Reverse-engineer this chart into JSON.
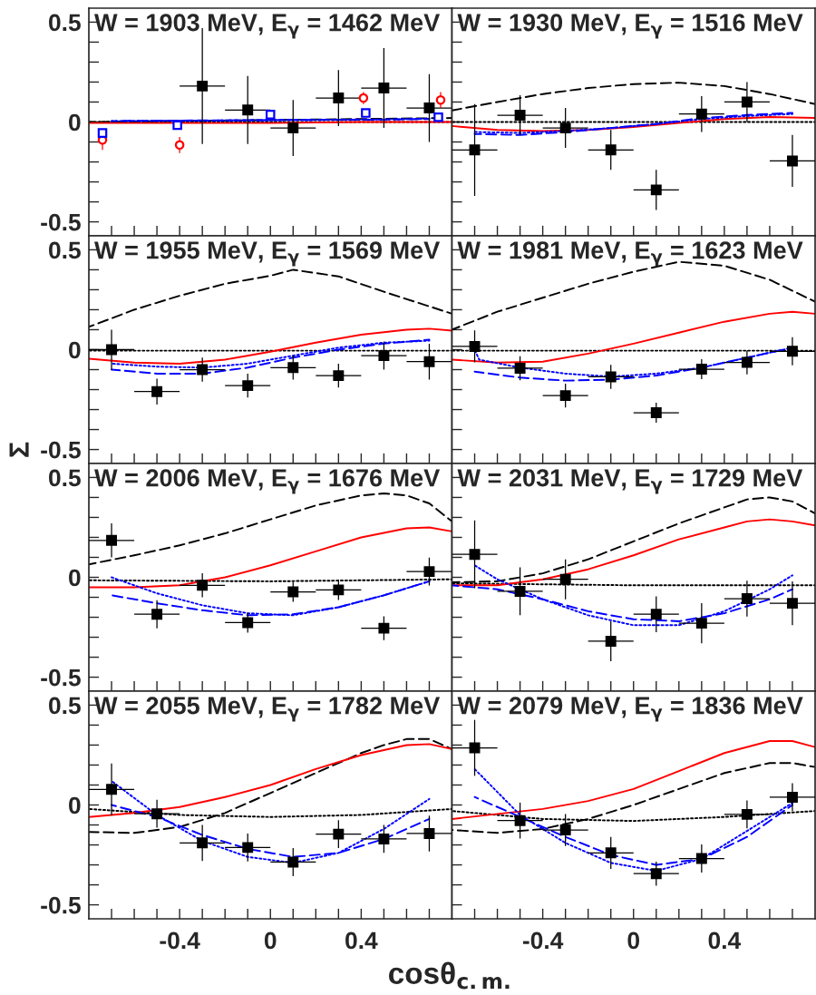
{
  "chart_data": [
    {
      "type": "scatter",
      "title": "W = 1903 MeV, E$_{γ}$ = 1462 MeV",
      "xlim": [
        -0.8,
        0.8
      ],
      "ylim": [
        -0.57,
        0.57
      ],
      "tick_labels": "y",
      "xticks": [
        {
          "value": -0.7,
          "label": null
        },
        {
          "value": -0.6,
          "label": null
        },
        {
          "value": -0.5,
          "label": null
        },
        -0.4,
        {
          "value": -0.3,
          "label": null
        },
        {
          "value": -0.2,
          "label": null
        },
        {
          "value": -0.1,
          "label": null
        },
        0,
        {
          "value": 0.1,
          "label": null
        },
        {
          "value": 0.2,
          "label": null
        },
        {
          "value": 0.3,
          "label": null
        },
        0.4,
        {
          "value": 0.5,
          "label": null
        },
        {
          "value": 0.6,
          "label": null
        },
        {
          "value": 0.7,
          "label": null
        }
      ],
      "yticks": [
        -0.5,
        {
          "value": -0.4,
          "label": null
        },
        {
          "value": -0.3,
          "label": null
        },
        {
          "value": -0.2,
          "label": null
        },
        {
          "value": -0.1,
          "label": null
        },
        0,
        {
          "value": 0.1,
          "label": null
        },
        {
          "value": 0.2,
          "label": null
        },
        {
          "value": 0.3,
          "label": null
        },
        {
          "value": 0.4,
          "label": null
        },
        0.5
      ],
      "series": [
        {
          "type": "line",
          "color": "#000000",
          "line_style": "dotted",
          "x": [
            -0.8,
            0,
            0.8
          ],
          "values": [
            0,
            0,
            0
          ]
        },
        {
          "type": "line",
          "color": "#000000",
          "line_style": "dashed",
          "x": [
            -0.8,
            -0.4,
            0,
            0.4,
            0.8
          ],
          "values": [
            0.0,
            0.005,
            0.01,
            0.015,
            0.02
          ]
        },
        {
          "type": "line",
          "color": "#ff0000",
          "line_style": "solid",
          "x": [
            -0.8,
            -0.4,
            0,
            0.4,
            0.8
          ],
          "values": [
            -0.005,
            -0.005,
            -0.005,
            0.0,
            0.0
          ]
        },
        {
          "type": "line",
          "color": "#0000ff",
          "line_style": "dashed",
          "x": [
            -0.7,
            -0.3,
            0.1,
            0.5,
            0.7
          ],
          "values": [
            0.005,
            0.008,
            0.01,
            0.012,
            0.015
          ]
        },
        {
          "type": "line",
          "color": "#0000ff",
          "line_style": "dotted",
          "x": [
            -0.7,
            -0.3,
            0.1,
            0.5,
            0.7
          ],
          "values": [
            0.005,
            0.007,
            0.01,
            0.013,
            0.016
          ]
        },
        {
          "type": "scatter",
          "marker": "square",
          "color": "#000000",
          "x": [
            -0.3,
            -0.1,
            0.1,
            0.3,
            0.5,
            0.7
          ],
          "values": [
            0.18,
            0.06,
            -0.03,
            0.12,
            0.17,
            0.07
          ],
          "errors": [
            0.29,
            0.17,
            0.14,
            0.14,
            0.2,
            0.17
          ],
          "xerrors": [
            0.1,
            0.1,
            0.1,
            0.1,
            0.1,
            0.1
          ]
        },
        {
          "type": "scatter",
          "marker": "circle",
          "color": "#ff0000",
          "x": [
            -0.74,
            -0.4,
            0.41,
            0.75
          ],
          "values": [
            -0.09,
            -0.115,
            0.12,
            0.11
          ],
          "errors": [
            0.05,
            0.04,
            0.03,
            0.04
          ]
        },
        {
          "type": "scatter",
          "marker": "square",
          "color": "#0000ff",
          "x": [
            -0.74,
            -0.41,
            0.0,
            0.42,
            0.74
          ],
          "values": [
            -0.055,
            -0.016,
            0.037,
            0.045,
            0.024
          ],
          "errors": [
            0.02,
            0.02,
            0.02,
            0.02,
            0.02
          ]
        }
      ]
    },
    {
      "type": "scatter",
      "title": "W = 1930 MeV, E$_{γ}$ = 1516 MeV",
      "xlim": [
        -0.8,
        0.8
      ],
      "ylim": [
        -0.57,
        0.57
      ],
      "tick_labels": false,
      "xticks": [
        {
          "value": -0.7,
          "label": null
        },
        {
          "value": -0.6,
          "label": null
        },
        {
          "value": -0.5,
          "label": null
        },
        -0.4,
        {
          "value": -0.3,
          "label": null
        },
        {
          "value": -0.2,
          "label": null
        },
        {
          "value": -0.1,
          "label": null
        },
        0,
        {
          "value": 0.1,
          "label": null
        },
        {
          "value": 0.2,
          "label": null
        },
        {
          "value": 0.3,
          "label": null
        },
        0.4,
        {
          "value": 0.5,
          "label": null
        },
        {
          "value": 0.6,
          "label": null
        },
        {
          "value": 0.7,
          "label": null
        }
      ],
      "yticks": [
        -0.5,
        {
          "value": -0.4,
          "label": null
        },
        {
          "value": -0.3,
          "label": null
        },
        {
          "value": -0.2,
          "label": null
        },
        {
          "value": -0.1,
          "label": null
        },
        0,
        {
          "value": 0.1,
          "label": null
        },
        {
          "value": 0.2,
          "label": null
        },
        {
          "value": 0.3,
          "label": null
        },
        {
          "value": 0.4,
          "label": null
        },
        0.5
      ],
      "series": [
        {
          "type": "line",
          "color": "#000000",
          "line_style": "dotted",
          "x": [
            -0.8,
            0,
            0.8
          ],
          "values": [
            0,
            0,
            0
          ]
        },
        {
          "type": "line",
          "color": "#000000",
          "line_style": "dashed",
          "x": [
            -0.8,
            -0.6,
            -0.4,
            -0.2,
            0,
            0.2,
            0.4,
            0.6,
            0.8
          ],
          "values": [
            0.058,
            0.1,
            0.14,
            0.17,
            0.19,
            0.197,
            0.18,
            0.14,
            0.09
          ]
        },
        {
          "type": "line",
          "color": "#ff0000",
          "line_style": "solid",
          "x": [
            -0.8,
            -0.6,
            -0.4,
            -0.2,
            0,
            0.2,
            0.4,
            0.6,
            0.8
          ],
          "values": [
            -0.02,
            -0.04,
            -0.045,
            -0.04,
            -0.025,
            -0.005,
            0.015,
            0.025,
            0.02
          ]
        },
        {
          "type": "line",
          "color": "#0000ff",
          "line_style": "dashed",
          "x": [
            -0.7,
            -0.5,
            -0.3,
            -0.1,
            0.1,
            0.3,
            0.5,
            0.7
          ],
          "values": [
            -0.06,
            -0.065,
            -0.05,
            -0.03,
            -0.01,
            0.02,
            0.035,
            0.045
          ]
        },
        {
          "type": "line",
          "color": "#0000ff",
          "line_style": "dotted",
          "x": [
            -0.7,
            -0.5,
            -0.3,
            -0.1,
            0.1,
            0.3,
            0.5,
            0.7
          ],
          "values": [
            -0.05,
            -0.055,
            -0.045,
            -0.03,
            -0.01,
            0.015,
            0.03,
            0.04
          ]
        },
        {
          "type": "scatter",
          "marker": "square",
          "color": "#000000",
          "x": [
            -0.7,
            -0.5,
            -0.3,
            -0.1,
            0.1,
            0.3,
            0.5,
            0.7
          ],
          "values": [
            -0.14,
            0.034,
            -0.03,
            -0.14,
            -0.34,
            0.04,
            0.1,
            -0.195
          ],
          "errors": [
            0.23,
            0.1,
            0.1,
            0.1,
            0.1,
            0.09,
            0.1,
            0.13
          ],
          "xerrors": [
            0.1,
            0.1,
            0.1,
            0.1,
            0.1,
            0.1,
            0.1,
            0.1
          ]
        }
      ]
    },
    {
      "type": "scatter",
      "title": "W = 1955 MeV, E$_{γ}$ = 1569 MeV",
      "ylabel": "Σ",
      "xlim": [
        -0.8,
        0.8
      ],
      "ylim": [
        -0.57,
        0.57
      ],
      "tick_labels": "y",
      "xticks": [
        {
          "value": -0.7,
          "label": null
        },
        {
          "value": -0.6,
          "label": null
        },
        {
          "value": -0.5,
          "label": null
        },
        -0.4,
        {
          "value": -0.3,
          "label": null
        },
        {
          "value": -0.2,
          "label": null
        },
        {
          "value": -0.1,
          "label": null
        },
        0,
        {
          "value": 0.1,
          "label": null
        },
        {
          "value": 0.2,
          "label": null
        },
        {
          "value": 0.3,
          "label": null
        },
        0.4,
        {
          "value": 0.5,
          "label": null
        },
        {
          "value": 0.6,
          "label": null
        },
        {
          "value": 0.7,
          "label": null
        }
      ],
      "yticks": [
        -0.5,
        {
          "value": -0.4,
          "label": null
        },
        {
          "value": -0.3,
          "label": null
        },
        {
          "value": -0.2,
          "label": null
        },
        {
          "value": -0.1,
          "label": null
        },
        0,
        {
          "value": 0.1,
          "label": null
        },
        {
          "value": 0.2,
          "label": null
        },
        {
          "value": 0.3,
          "label": null
        },
        {
          "value": 0.4,
          "label": null
        },
        0.5
      ],
      "series": [
        {
          "type": "line",
          "color": "#000000",
          "line_style": "dotted",
          "x": [
            -0.8,
            0,
            0.8
          ],
          "values": [
            -0.005,
            -0.005,
            -0.005
          ]
        },
        {
          "type": "line",
          "color": "#000000",
          "line_style": "dashed",
          "x": [
            -0.8,
            -0.6,
            -0.4,
            -0.2,
            0,
            0.1,
            0.3,
            0.5,
            0.8
          ],
          "values": [
            0.114,
            0.2,
            0.27,
            0.33,
            0.37,
            0.4,
            0.367,
            0.29,
            0.18
          ]
        },
        {
          "type": "line",
          "color": "#ff0000",
          "line_style": "solid",
          "x": [
            -0.8,
            -0.6,
            -0.4,
            -0.2,
            0,
            0.2,
            0.4,
            0.6,
            0.7,
            0.8
          ],
          "values": [
            -0.045,
            -0.065,
            -0.07,
            -0.05,
            -0.01,
            0.035,
            0.075,
            0.1,
            0.105,
            0.095
          ]
        },
        {
          "type": "line",
          "color": "#0000ff",
          "line_style": "dashed",
          "x": [
            -0.7,
            -0.5,
            -0.3,
            -0.1,
            0.1,
            0.3,
            0.5,
            0.7
          ],
          "values": [
            -0.1,
            -0.12,
            -0.12,
            -0.09,
            -0.04,
            0.0,
            0.03,
            0.05
          ]
        },
        {
          "type": "line",
          "color": "#0000ff",
          "line_style": "dotted",
          "x": [
            -0.7,
            -0.5,
            -0.3,
            -0.1,
            0.1,
            0.3,
            0.5,
            0.7
          ],
          "values": [
            -0.07,
            -0.085,
            -0.09,
            -0.07,
            -0.03,
            0.01,
            0.035,
            0.045
          ]
        },
        {
          "type": "scatter",
          "marker": "square",
          "color": "#000000",
          "x": [
            -0.7,
            -0.5,
            -0.3,
            -0.1,
            0.1,
            0.3,
            0.5,
            0.7
          ],
          "values": [
            0.0,
            -0.21,
            -0.1,
            -0.18,
            -0.09,
            -0.13,
            -0.03,
            -0.06
          ],
          "errors": [
            0.1,
            0.065,
            0.06,
            0.06,
            0.06,
            0.06,
            0.07,
            0.09
          ],
          "xerrors": [
            0.1,
            0.1,
            0.1,
            0.1,
            0.1,
            0.1,
            0.1,
            0.1
          ]
        }
      ]
    },
    {
      "type": "scatter",
      "title": "W = 1981 MeV, E$_{γ}$ = 1623 MeV",
      "xlim": [
        -0.8,
        0.8
      ],
      "ylim": [
        -0.57,
        0.57
      ],
      "tick_labels": false,
      "xticks": [
        {
          "value": -0.7,
          "label": null
        },
        {
          "value": -0.6,
          "label": null
        },
        {
          "value": -0.5,
          "label": null
        },
        -0.4,
        {
          "value": -0.3,
          "label": null
        },
        {
          "value": -0.2,
          "label": null
        },
        {
          "value": -0.1,
          "label": null
        },
        0,
        {
          "value": 0.1,
          "label": null
        },
        {
          "value": 0.2,
          "label": null
        },
        {
          "value": 0.3,
          "label": null
        },
        0.4,
        {
          "value": 0.5,
          "label": null
        },
        {
          "value": 0.6,
          "label": null
        },
        {
          "value": 0.7,
          "label": null
        }
      ],
      "yticks": [
        -0.5,
        {
          "value": -0.4,
          "label": null
        },
        {
          "value": -0.3,
          "label": null
        },
        {
          "value": -0.2,
          "label": null
        },
        {
          "value": -0.1,
          "label": null
        },
        0,
        {
          "value": 0.1,
          "label": null
        },
        {
          "value": 0.2,
          "label": null
        },
        {
          "value": 0.3,
          "label": null
        },
        {
          "value": 0.4,
          "label": null
        },
        0.5
      ],
      "series": [
        {
          "type": "line",
          "color": "#000000",
          "line_style": "dotted",
          "x": [
            -0.8,
            0,
            0.8
          ],
          "values": [
            -0.005,
            -0.005,
            -0.005
          ]
        },
        {
          "type": "line",
          "color": "#000000",
          "line_style": "dashed",
          "x": [
            -0.8,
            -0.6,
            -0.4,
            -0.2,
            0,
            0.2,
            0.4,
            0.6,
            0.8
          ],
          "values": [
            0.1,
            0.19,
            0.26,
            0.33,
            0.39,
            0.44,
            0.42,
            0.35,
            0.24
          ]
        },
        {
          "type": "line",
          "color": "#ff0000",
          "line_style": "solid",
          "x": [
            -0.8,
            -0.6,
            -0.4,
            -0.2,
            0,
            0.2,
            0.4,
            0.6,
            0.7,
            0.8
          ],
          "values": [
            -0.05,
            -0.065,
            -0.06,
            -0.02,
            0.03,
            0.085,
            0.14,
            0.18,
            0.19,
            0.18
          ]
        },
        {
          "type": "line",
          "color": "#0000ff",
          "line_style": "dashed",
          "x": [
            -0.7,
            -0.5,
            -0.3,
            -0.1,
            0.1,
            0.3,
            0.5,
            0.7
          ],
          "values": [
            -0.11,
            -0.14,
            -0.155,
            -0.15,
            -0.13,
            -0.09,
            -0.04,
            0.01
          ]
        },
        {
          "type": "line",
          "color": "#0000ff",
          "line_style": "dotted",
          "x": [
            -0.7,
            -0.68,
            -0.5,
            -0.3,
            -0.1,
            0.1,
            0.3,
            0.5,
            0.7
          ],
          "values": [
            0.0,
            -0.05,
            -0.09,
            -0.12,
            -0.135,
            -0.12,
            -0.09,
            -0.04,
            0.01
          ]
        },
        {
          "type": "scatter",
          "marker": "square",
          "color": "#000000",
          "x": [
            -0.7,
            -0.5,
            -0.3,
            -0.1,
            0.1,
            0.3,
            0.5,
            0.7
          ],
          "values": [
            0.016,
            -0.093,
            -0.23,
            -0.136,
            -0.316,
            -0.098,
            -0.064,
            -0.008
          ],
          "errors": [
            0.08,
            0.06,
            0.06,
            0.06,
            0.05,
            0.05,
            0.06,
            0.07
          ],
          "xerrors": [
            0.1,
            0.1,
            0.1,
            0.1,
            0.1,
            0.1,
            0.1,
            0.1
          ]
        }
      ]
    },
    {
      "type": "scatter",
      "title": "W = 2006 MeV, E$_{γ}$ = 1676 MeV",
      "xlim": [
        -0.8,
        0.8
      ],
      "ylim": [
        -0.57,
        0.57
      ],
      "tick_labels": "y",
      "xticks": [
        {
          "value": -0.7,
          "label": null
        },
        {
          "value": -0.6,
          "label": null
        },
        {
          "value": -0.5,
          "label": null
        },
        -0.4,
        {
          "value": -0.3,
          "label": null
        },
        {
          "value": -0.2,
          "label": null
        },
        {
          "value": -0.1,
          "label": null
        },
        0,
        {
          "value": 0.1,
          "label": null
        },
        {
          "value": 0.2,
          "label": null
        },
        {
          "value": 0.3,
          "label": null
        },
        0.4,
        {
          "value": 0.5,
          "label": null
        },
        {
          "value": 0.6,
          "label": null
        },
        {
          "value": 0.7,
          "label": null
        }
      ],
      "yticks": [
        -0.5,
        {
          "value": -0.4,
          "label": null
        },
        {
          "value": -0.3,
          "label": null
        },
        {
          "value": -0.2,
          "label": null
        },
        {
          "value": -0.1,
          "label": null
        },
        0,
        {
          "value": 0.1,
          "label": null
        },
        {
          "value": 0.2,
          "label": null
        },
        {
          "value": 0.3,
          "label": null
        },
        {
          "value": 0.4,
          "label": null
        },
        0.5
      ],
      "series": [
        {
          "type": "line",
          "color": "#000000",
          "line_style": "dotted",
          "x": [
            -0.8,
            0,
            0.8
          ],
          "values": [
            -0.015,
            -0.02,
            -0.01
          ]
        },
        {
          "type": "line",
          "color": "#000000",
          "line_style": "dashed",
          "x": [
            -0.8,
            -0.6,
            -0.4,
            -0.2,
            0,
            0.2,
            0.4,
            0.5,
            0.6,
            0.7,
            0.8
          ],
          "values": [
            0.065,
            0.11,
            0.16,
            0.22,
            0.29,
            0.36,
            0.41,
            0.42,
            0.41,
            0.37,
            0.28
          ]
        },
        {
          "type": "line",
          "color": "#ff0000",
          "line_style": "solid",
          "x": [
            -0.8,
            -0.6,
            -0.4,
            -0.2,
            0,
            0.2,
            0.4,
            0.6,
            0.7,
            0.8
          ],
          "values": [
            -0.05,
            -0.05,
            -0.04,
            0.0,
            0.06,
            0.13,
            0.2,
            0.245,
            0.25,
            0.23
          ]
        },
        {
          "type": "line",
          "color": "#0000ff",
          "line_style": "dashed",
          "x": [
            -0.7,
            -0.5,
            -0.3,
            -0.1,
            0.1,
            0.3,
            0.5,
            0.7
          ],
          "values": [
            -0.09,
            -0.13,
            -0.165,
            -0.19,
            -0.185,
            -0.15,
            -0.09,
            -0.02
          ]
        },
        {
          "type": "line",
          "color": "#0000ff",
          "line_style": "dotted",
          "x": [
            -0.7,
            -0.5,
            -0.3,
            -0.1,
            0.1,
            0.3,
            0.5,
            0.7
          ],
          "values": [
            0.0,
            -0.08,
            -0.14,
            -0.18,
            -0.19,
            -0.15,
            -0.09,
            -0.02
          ]
        },
        {
          "type": "scatter",
          "marker": "square",
          "color": "#000000",
          "x": [
            -0.7,
            -0.5,
            -0.3,
            -0.1,
            0.1,
            0.3,
            0.5,
            0.7
          ],
          "values": [
            0.185,
            -0.185,
            -0.04,
            -0.227,
            -0.073,
            -0.063,
            -0.255,
            0.029
          ],
          "errors": [
            0.085,
            0.07,
            0.06,
            0.05,
            0.05,
            0.05,
            0.06,
            0.07
          ],
          "xerrors": [
            0.1,
            0.1,
            0.1,
            0.1,
            0.1,
            0.1,
            0.1,
            0.1
          ]
        }
      ]
    },
    {
      "type": "scatter",
      "title": "W = 2031 MeV, E$_{γ}$ = 1729 MeV",
      "xlim": [
        -0.8,
        0.8
      ],
      "ylim": [
        -0.57,
        0.57
      ],
      "tick_labels": false,
      "xticks": [
        {
          "value": -0.7,
          "label": null
        },
        {
          "value": -0.6,
          "label": null
        },
        {
          "value": -0.5,
          "label": null
        },
        -0.4,
        {
          "value": -0.3,
          "label": null
        },
        {
          "value": -0.2,
          "label": null
        },
        {
          "value": -0.1,
          "label": null
        },
        0,
        {
          "value": 0.1,
          "label": null
        },
        {
          "value": 0.2,
          "label": null
        },
        {
          "value": 0.3,
          "label": null
        },
        0.4,
        {
          "value": 0.5,
          "label": null
        },
        {
          "value": 0.6,
          "label": null
        },
        {
          "value": 0.7,
          "label": null
        }
      ],
      "yticks": [
        -0.5,
        {
          "value": -0.4,
          "label": null
        },
        {
          "value": -0.3,
          "label": null
        },
        {
          "value": -0.2,
          "label": null
        },
        {
          "value": -0.1,
          "label": null
        },
        0,
        {
          "value": 0.1,
          "label": null
        },
        {
          "value": 0.2,
          "label": null
        },
        {
          "value": 0.3,
          "label": null
        },
        {
          "value": 0.4,
          "label": null
        },
        0.5
      ],
      "series": [
        {
          "type": "line",
          "color": "#000000",
          "line_style": "dotted",
          "x": [
            -0.8,
            0,
            0.8
          ],
          "values": [
            -0.03,
            -0.04,
            -0.04
          ]
        },
        {
          "type": "line",
          "color": "#000000",
          "line_style": "dashed",
          "x": [
            -0.8,
            -0.6,
            -0.4,
            -0.2,
            0,
            0.2,
            0.4,
            0.5,
            0.6,
            0.7,
            0.8
          ],
          "values": [
            -0.025,
            -0.02,
            0.02,
            0.09,
            0.18,
            0.27,
            0.35,
            0.39,
            0.4,
            0.38,
            0.32
          ]
        },
        {
          "type": "line",
          "color": "#ff0000",
          "line_style": "solid",
          "x": [
            -0.8,
            -0.6,
            -0.4,
            -0.2,
            0,
            0.2,
            0.4,
            0.5,
            0.6,
            0.7,
            0.8
          ],
          "values": [
            -0.04,
            -0.04,
            -0.01,
            0.04,
            0.11,
            0.19,
            0.25,
            0.28,
            0.29,
            0.28,
            0.26
          ]
        },
        {
          "type": "line",
          "color": "#0000ff",
          "line_style": "dashed",
          "x": [
            -0.8,
            -0.6,
            -0.4,
            -0.2,
            0,
            0.2,
            0.4,
            0.6,
            0.7
          ],
          "values": [
            -0.04,
            -0.06,
            -0.11,
            -0.17,
            -0.21,
            -0.22,
            -0.18,
            -0.11,
            -0.06
          ]
        },
        {
          "type": "line",
          "color": "#0000ff",
          "line_style": "dotted",
          "x": [
            -0.7,
            -0.6,
            -0.4,
            -0.2,
            0,
            0.2,
            0.4,
            0.6,
            0.7
          ],
          "values": [
            0.06,
            -0.01,
            -0.11,
            -0.19,
            -0.24,
            -0.24,
            -0.17,
            -0.06,
            0.01
          ]
        },
        {
          "type": "scatter",
          "marker": "square",
          "color": "#000000",
          "x": [
            -0.7,
            -0.5,
            -0.3,
            -0.1,
            0.1,
            0.3,
            0.5,
            0.7
          ],
          "values": [
            0.115,
            -0.07,
            -0.01,
            -0.32,
            -0.185,
            -0.23,
            -0.107,
            -0.13
          ],
          "errors": [
            0.17,
            0.12,
            0.1,
            0.1,
            0.09,
            0.1,
            0.09,
            0.11
          ],
          "xerrors": [
            0.1,
            0.1,
            0.1,
            0.1,
            0.1,
            0.1,
            0.1,
            0.1
          ]
        }
      ]
    },
    {
      "type": "scatter",
      "title": "W = 2055 MeV, E$_{γ}$ = 1782 MeV",
      "xlabel": "cosθ$_{c.m.}$",
      "xlim": [
        -0.8,
        0.8
      ],
      "ylim": [
        -0.57,
        0.57
      ],
      "xticks": [
        {
          "value": -0.7,
          "label": null
        },
        {
          "value": -0.6,
          "label": null
        },
        {
          "value": -0.5,
          "label": null
        },
        -0.4,
        {
          "value": -0.3,
          "label": null
        },
        {
          "value": -0.2,
          "label": null
        },
        {
          "value": -0.1,
          "label": null
        },
        0,
        {
          "value": 0.1,
          "label": null
        },
        {
          "value": 0.2,
          "label": null
        },
        {
          "value": 0.3,
          "label": null
        },
        0.4,
        {
          "value": 0.5,
          "label": null
        },
        {
          "value": 0.6,
          "label": null
        },
        {
          "value": 0.7,
          "label": null
        }
      ],
      "yticks": [
        -0.5,
        {
          "value": -0.4,
          "label": null
        },
        {
          "value": -0.3,
          "label": null
        },
        {
          "value": -0.2,
          "label": null
        },
        {
          "value": -0.1,
          "label": null
        },
        0,
        {
          "value": 0.1,
          "label": null
        },
        {
          "value": 0.2,
          "label": null
        },
        {
          "value": 0.3,
          "label": null
        },
        {
          "value": 0.4,
          "label": null
        },
        0.5
      ],
      "series": [
        {
          "type": "line",
          "color": "#000000",
          "line_style": "dotted",
          "x": [
            -0.8,
            -0.4,
            0,
            0.4,
            0.8
          ],
          "values": [
            -0.02,
            -0.05,
            -0.06,
            -0.05,
            -0.02
          ]
        },
        {
          "type": "line",
          "color": "#000000",
          "line_style": "dashed",
          "x": [
            -0.8,
            -0.6,
            -0.4,
            -0.2,
            0,
            0.2,
            0.4,
            0.5,
            0.6,
            0.7,
            0.8
          ],
          "values": [
            -0.135,
            -0.14,
            -0.11,
            -0.04,
            0.06,
            0.16,
            0.26,
            0.3,
            0.33,
            0.33,
            0.28
          ]
        },
        {
          "type": "line",
          "color": "#ff0000",
          "line_style": "solid",
          "x": [
            -0.8,
            -0.6,
            -0.4,
            -0.2,
            0,
            0.2,
            0.4,
            0.6,
            0.7,
            0.8
          ],
          "values": [
            -0.06,
            -0.04,
            -0.01,
            0.04,
            0.1,
            0.18,
            0.25,
            0.3,
            0.305,
            0.28
          ]
        },
        {
          "type": "line",
          "color": "#0000ff",
          "line_style": "dashed",
          "x": [
            -0.7,
            -0.5,
            -0.3,
            -0.1,
            0.1,
            0.3,
            0.5,
            0.7
          ],
          "values": [
            0.0,
            -0.06,
            -0.15,
            -0.22,
            -0.26,
            -0.24,
            -0.17,
            -0.07
          ]
        },
        {
          "type": "line",
          "color": "#0000ff",
          "line_style": "dotted",
          "x": [
            -0.7,
            -0.5,
            -0.3,
            -0.1,
            0.1,
            0.3,
            0.5,
            0.7
          ],
          "values": [
            0.12,
            -0.05,
            -0.18,
            -0.26,
            -0.29,
            -0.24,
            -0.12,
            0.03
          ]
        },
        {
          "type": "scatter",
          "marker": "square",
          "color": "#000000",
          "x": [
            -0.7,
            -0.5,
            -0.3,
            -0.1,
            0.1,
            0.3,
            0.5,
            0.7
          ],
          "values": [
            0.078,
            -0.044,
            -0.19,
            -0.213,
            -0.286,
            -0.146,
            -0.17,
            -0.143
          ],
          "errors": [
            0.13,
            0.07,
            0.09,
            0.07,
            0.07,
            0.07,
            0.07,
            0.09
          ],
          "xerrors": [
            0.1,
            0.1,
            0.1,
            0.1,
            0.1,
            0.1,
            0.1,
            0.1
          ]
        }
      ]
    },
    {
      "type": "scatter",
      "title": "W = 2079 MeV, E$_{γ}$ = 1836 MeV",
      "xlim": [
        -0.8,
        0.8
      ],
      "ylim": [
        -0.57,
        0.57
      ],
      "tick_labels": "x",
      "xticks": [
        {
          "value": -0.7,
          "label": null
        },
        {
          "value": -0.6,
          "label": null
        },
        {
          "value": -0.5,
          "label": null
        },
        -0.4,
        {
          "value": -0.3,
          "label": null
        },
        {
          "value": -0.2,
          "label": null
        },
        {
          "value": -0.1,
          "label": null
        },
        0,
        {
          "value": 0.1,
          "label": null
        },
        {
          "value": 0.2,
          "label": null
        },
        {
          "value": 0.3,
          "label": null
        },
        0.4,
        {
          "value": 0.5,
          "label": null
        },
        {
          "value": 0.6,
          "label": null
        },
        {
          "value": 0.7,
          "label": null
        }
      ],
      "yticks": [
        -0.5,
        {
          "value": -0.4,
          "label": null
        },
        {
          "value": -0.3,
          "label": null
        },
        {
          "value": -0.2,
          "label": null
        },
        {
          "value": -0.1,
          "label": null
        },
        0,
        {
          "value": 0.1,
          "label": null
        },
        {
          "value": 0.2,
          "label": null
        },
        {
          "value": 0.3,
          "label": null
        },
        {
          "value": 0.4,
          "label": null
        },
        0.5
      ],
      "series": [
        {
          "type": "line",
          "color": "#000000",
          "line_style": "dotted",
          "x": [
            -0.8,
            -0.4,
            0,
            0.4,
            0.8
          ],
          "values": [
            -0.03,
            -0.07,
            -0.08,
            -0.06,
            -0.03
          ]
        },
        {
          "type": "line",
          "color": "#000000",
          "line_style": "dashed",
          "x": [
            -0.8,
            -0.6,
            -0.4,
            -0.2,
            0,
            0.2,
            0.4,
            0.6,
            0.7,
            0.8
          ],
          "values": [
            -0.125,
            -0.14,
            -0.12,
            -0.07,
            0.0,
            0.08,
            0.16,
            0.21,
            0.21,
            0.19
          ]
        },
        {
          "type": "line",
          "color": "#ff0000",
          "line_style": "solid",
          "x": [
            -0.8,
            -0.6,
            -0.4,
            -0.2,
            0,
            0.2,
            0.4,
            0.6,
            0.7,
            0.8
          ],
          "values": [
            -0.07,
            -0.045,
            -0.02,
            0.02,
            0.08,
            0.17,
            0.26,
            0.32,
            0.32,
            0.29
          ]
        },
        {
          "type": "line",
          "color": "#0000ff",
          "line_style": "dashed",
          "x": [
            -0.7,
            -0.5,
            -0.3,
            -0.1,
            0.1,
            0.3,
            0.5,
            0.7
          ],
          "values": [
            0.04,
            -0.06,
            -0.16,
            -0.25,
            -0.3,
            -0.27,
            -0.16,
            0.0
          ]
        },
        {
          "type": "line",
          "color": "#0000ff",
          "line_style": "dotted",
          "x": [
            -0.7,
            -0.5,
            -0.3,
            -0.1,
            0.1,
            0.3,
            0.5,
            0.7
          ],
          "values": [
            0.18,
            -0.05,
            -0.19,
            -0.29,
            -0.33,
            -0.27,
            -0.13,
            0.01
          ]
        },
        {
          "type": "scatter",
          "marker": "square",
          "color": "#000000",
          "x": [
            -0.7,
            -0.5,
            -0.3,
            -0.1,
            0.1,
            0.3,
            0.5,
            0.7
          ],
          "values": [
            0.286,
            -0.078,
            -0.125,
            -0.24,
            -0.344,
            -0.268,
            -0.047,
            0.039
          ],
          "errors": [
            0.14,
            0.09,
            0.08,
            0.08,
            0.06,
            0.07,
            0.07,
            0.07
          ],
          "xerrors": [
            0.1,
            0.1,
            0.1,
            0.1,
            0.1,
            0.1,
            0.1,
            0.1
          ]
        }
      ]
    }
  ]
}
